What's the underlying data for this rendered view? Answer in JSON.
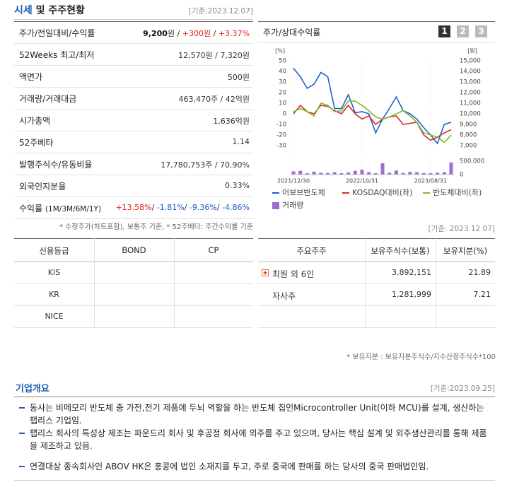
{
  "header": {
    "title_main": "시세",
    "title_rest": "및 주주현황",
    "date": "[기준:2023.12.07]"
  },
  "price_table": {
    "rows": [
      {
        "label": "주가/전일대비/수익률",
        "parts": [
          {
            "text": "9,200",
            "tone": "bold"
          },
          {
            "text": "원 / ",
            "tone": "plain"
          },
          {
            "text": "+300원",
            "tone": "up"
          },
          {
            "text": " / ",
            "tone": "plain"
          },
          {
            "text": "+3.37%",
            "tone": "up"
          }
        ]
      },
      {
        "label": "52Weeks 최고/최저",
        "parts": [
          {
            "text": "12,570원 / 7,320원",
            "tone": "plain"
          }
        ]
      },
      {
        "label": "액면가",
        "parts": [
          {
            "text": "500원",
            "tone": "plain"
          }
        ]
      },
      {
        "label": "거래량/거래대금",
        "parts": [
          {
            "text": "463,470주 / 42억원",
            "tone": "plain"
          }
        ]
      },
      {
        "label": "시가총액",
        "parts": [
          {
            "text": "1,636억원",
            "tone": "plain"
          }
        ]
      },
      {
        "label": "52주베타",
        "parts": [
          {
            "text": "1.14",
            "tone": "plain"
          }
        ]
      },
      {
        "label": "발행주식수/유동비율",
        "parts": [
          {
            "text": "17,780,753주 / 70.90%",
            "tone": "plain"
          }
        ]
      },
      {
        "label": "외국인지분율",
        "parts": [
          {
            "text": "0.33%",
            "tone": "plain"
          }
        ]
      },
      {
        "label": "수익률",
        "label_note": "(1M/3M/6M/1Y)",
        "parts": [
          {
            "text": "+13.58%",
            "tone": "up"
          },
          {
            "text": "/ ",
            "tone": "plain"
          },
          {
            "text": "-1.81%",
            "tone": "down"
          },
          {
            "text": "/ ",
            "tone": "plain"
          },
          {
            "text": "-9.36%",
            "tone": "down"
          },
          {
            "text": "/ ",
            "tone": "plain"
          },
          {
            "text": "-4.86%",
            "tone": "down"
          }
        ]
      }
    ],
    "footnote": "* 수정주가(차트포함), 보통주 기준, * 52주베타: 주간수익률 기준"
  },
  "chart_buttons": [
    "1",
    "2",
    "3"
  ],
  "chart_date": "[기준: 2023.12.07]",
  "chart_data": [
    {
      "type": "line",
      "title": "주가/상대수익률",
      "y_label": "[%]",
      "y2_label": "[원]",
      "categories": [
        "2021/12/30",
        null,
        null,
        null,
        null,
        null,
        null,
        null,
        null,
        null,
        "2022/10/31",
        null,
        null,
        null,
        null,
        null,
        null,
        null,
        null,
        null,
        "2023/08/31",
        null,
        null,
        null
      ],
      "ylim": [
        -30,
        50
      ],
      "yticks": [
        50,
        40,
        30,
        20,
        10,
        0,
        -10,
        -20,
        -30
      ],
      "y2lim": [
        7000,
        15000
      ],
      "y2ticks": [
        {
          "value": 15000,
          "label": "15,000"
        },
        {
          "value": 14000,
          "label": "14,000"
        },
        {
          "value": 13000,
          "label": "13,000"
        },
        {
          "value": 12000,
          "label": "12,000"
        },
        {
          "value": 11000,
          "label": "11,000"
        },
        {
          "value": 10000,
          "label": "10,000"
        },
        {
          "value": 9000,
          "label": "9,000"
        },
        {
          "value": 8000,
          "label": "8,000"
        },
        {
          "value": 7000,
          "label": "7,000"
        }
      ],
      "series": [
        {
          "name": "어보브반도체",
          "color": "#1f5fd0",
          "axis": "y2",
          "values": [
            14300,
            13500,
            12400,
            12800,
            13900,
            13500,
            10500,
            10500,
            11800,
            10100,
            10200,
            10000,
            8200,
            9500,
            10500,
            11600,
            10300,
            10000,
            9500,
            8700,
            8000,
            7200,
            9000,
            9200
          ]
        },
        {
          "name": "KOSDAQ대비(좌)",
          "color": "#d62b1f",
          "values": [
            0,
            8,
            2,
            0,
            8,
            7,
            3,
            0,
            8,
            0,
            -5,
            -2,
            -10,
            -5,
            -3,
            -2,
            -10,
            -9,
            -8,
            -20,
            -25,
            -22,
            -18,
            -15
          ]
        },
        {
          "name": "반도체대비(좌)",
          "color": "#7cb82f",
          "values": [
            2,
            5,
            2,
            -2,
            10,
            8,
            2,
            3,
            12,
            12,
            8,
            3,
            -3,
            -5,
            -3,
            0,
            3,
            -2,
            -8,
            -18,
            -20,
            -22,
            -27,
            -20
          ]
        }
      ]
    },
    {
      "type": "bar",
      "ylim": [
        0,
        500000
      ],
      "yticks": [
        {
          "value": 500000,
          "label": "500,000"
        },
        0
      ],
      "series": [
        {
          "name": "거래량",
          "color": "#9b6fd0",
          "values": [
            120000,
            140000,
            50000,
            110000,
            70000,
            60000,
            90000,
            50000,
            80000,
            140000,
            180000,
            90000,
            50000,
            420000,
            70000,
            150000,
            60000,
            100000,
            90000,
            60000,
            50000,
            70000,
            90000,
            450000
          ]
        }
      ]
    }
  ],
  "credit_table": {
    "headers": [
      "신용등급",
      "BOND",
      "CP"
    ],
    "rows": [
      [
        "KIS"
      ],
      [
        "KR"
      ],
      [
        "NICE"
      ]
    ]
  },
  "shareholder_table": {
    "headers": [
      "주요주주",
      "보유주식수(보통)",
      "보유지분(%)"
    ],
    "rows": [
      {
        "cells": [
          "최원 외 6인",
          "3,892,151",
          "21.89"
        ],
        "expandable": true
      },
      {
        "cells": [
          "자사주",
          "1,281,999",
          "7.21"
        ]
      }
    ],
    "footnote": "* 보유지분 : 보유지분주식수/지수산정주식수*100"
  },
  "overview": {
    "title": "기업개요",
    "date": "[기준:2023.09.25]",
    "items": [
      "동사는 비메모리 반도체 중 가전,전기 제품에 두뇌 역할을 하는 반도체 칩인Microcontroller Unit(이하 MCU)를 설계, 생산하는 팹리스 기업임.",
      "팹리스 회사의 특성상 제조는 파운드리 회사 및 후공정 회사에 외주를 주고 있으며, 당사는 핵심 설계 및 외주생산관리를 통해 제품을 제조하고 있음.",
      "연결대상 종속회사인 ABOV HK은 홍콩에 법인 소재지를 두고, 주로 중국에 판매를 하는 당사의 중국 판매법인임."
    ]
  }
}
